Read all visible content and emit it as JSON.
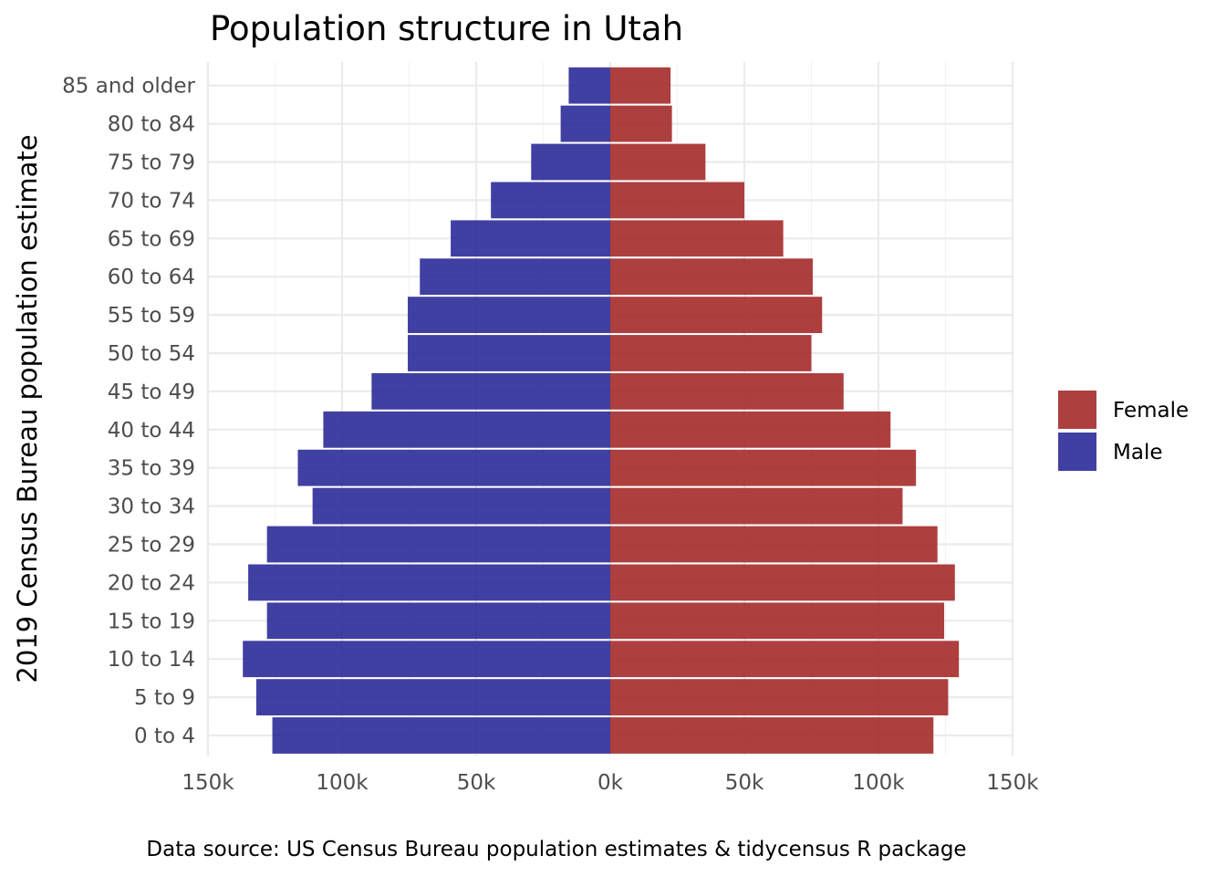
{
  "chart_data": {
    "type": "bar",
    "orientation": "horizontal",
    "title": "Population structure in Utah",
    "xlabel": "",
    "ylabel": "2019 Census Bureau population estimate",
    "caption": "Data source: US Census Bureau population estimates & tidycensus R package",
    "xlim": [
      -150000,
      150000
    ],
    "x_ticks": [
      {
        "value": -150000,
        "label": "150k"
      },
      {
        "value": -100000,
        "label": "100k"
      },
      {
        "value": -50000,
        "label": "50k"
      },
      {
        "value": 0,
        "label": "0k"
      },
      {
        "value": 50000,
        "label": "50k"
      },
      {
        "value": 100000,
        "label": "100k"
      },
      {
        "value": 150000,
        "label": "150k"
      }
    ],
    "categories": [
      "0 to 4",
      "5 to 9",
      "10 to 14",
      "15 to 19",
      "20 to 24",
      "25 to 29",
      "30 to 34",
      "35 to 39",
      "40 to 44",
      "45 to 49",
      "50 to 54",
      "55 to 59",
      "60 to 64",
      "65 to 69",
      "70 to 74",
      "75 to 79",
      "80 to 84",
      "85 and older"
    ],
    "series": [
      {
        "name": "Female",
        "color": "#a52a2a",
        "values": [
          120500,
          126000,
          130000,
          124500,
          128500,
          122000,
          109000,
          114000,
          104500,
          87000,
          75000,
          79000,
          75500,
          64500,
          50000,
          35500,
          23000,
          22500
        ]
      },
      {
        "name": "Male",
        "color": "#2b2b98",
        "values": [
          -126000,
          -132000,
          -137000,
          -128000,
          -135000,
          -128000,
          -111000,
          -116500,
          -107000,
          -89000,
          -75500,
          -75500,
          -71000,
          -59500,
          -44500,
          -29500,
          -18500,
          -15500
        ]
      }
    ],
    "grid": true,
    "legend_position": "right"
  }
}
